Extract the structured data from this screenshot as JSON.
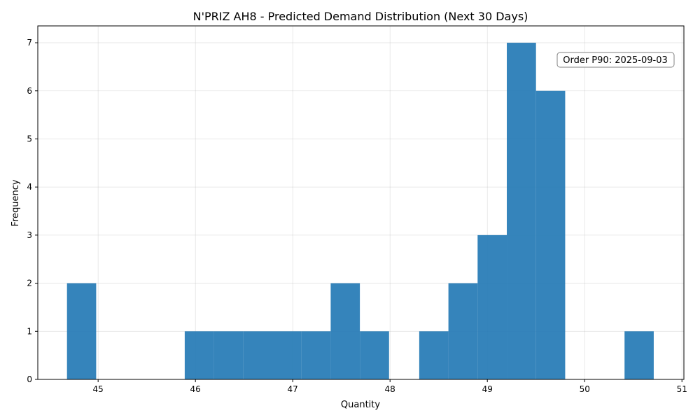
{
  "chart_data": {
    "type": "bar",
    "title": "N'PRIZ AH8 - Predicted Demand Distribution (Next 30 Days)",
    "xlabel": "Quantity",
    "ylabel": "Frequency",
    "xlim": [
      44.38,
      51.02
    ],
    "ylim": [
      0,
      7.35
    ],
    "x_ticks": [
      45,
      46,
      47,
      48,
      49,
      50,
      51
    ],
    "y_ticks": [
      0,
      1,
      2,
      3,
      4,
      5,
      6,
      7
    ],
    "grid": true,
    "bar_color": "#1f77b4",
    "bins": [
      {
        "x0": 44.68,
        "x1": 44.98,
        "count": 2
      },
      {
        "x0": 44.98,
        "x1": 45.28,
        "count": 0
      },
      {
        "x0": 45.28,
        "x1": 45.58,
        "count": 0
      },
      {
        "x0": 45.58,
        "x1": 45.89,
        "count": 0
      },
      {
        "x0": 45.89,
        "x1": 46.19,
        "count": 1
      },
      {
        "x0": 46.19,
        "x1": 46.49,
        "count": 1
      },
      {
        "x0": 46.49,
        "x1": 46.79,
        "count": 1
      },
      {
        "x0": 46.79,
        "x1": 47.09,
        "count": 1
      },
      {
        "x0": 47.09,
        "x1": 47.39,
        "count": 1
      },
      {
        "x0": 47.39,
        "x1": 47.69,
        "count": 2
      },
      {
        "x0": 47.69,
        "x1": 47.99,
        "count": 1
      },
      {
        "x0": 47.99,
        "x1": 48.3,
        "count": 0
      },
      {
        "x0": 48.3,
        "x1": 48.6,
        "count": 1
      },
      {
        "x0": 48.6,
        "x1": 48.9,
        "count": 2
      },
      {
        "x0": 48.9,
        "x1": 49.2,
        "count": 3
      },
      {
        "x0": 49.2,
        "x1": 49.5,
        "count": 7
      },
      {
        "x0": 49.5,
        "x1": 49.8,
        "count": 6
      },
      {
        "x0": 49.8,
        "x1": 50.11,
        "count": 0
      },
      {
        "x0": 50.11,
        "x1": 50.41,
        "count": 0
      },
      {
        "x0": 50.41,
        "x1": 50.71,
        "count": 1
      }
    ],
    "annotation": "Order P90: 2025-09-03"
  }
}
